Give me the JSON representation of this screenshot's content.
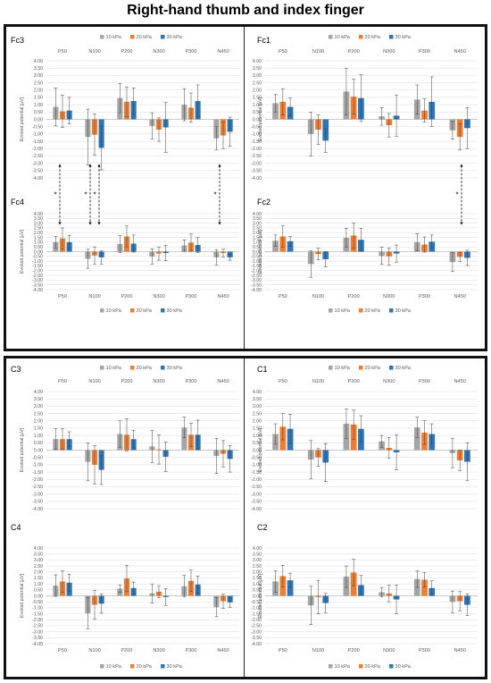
{
  "page": {
    "title": "Right-hand thumb and index finger"
  },
  "colors": {
    "s10": "#A5A5A5",
    "s20": "#ED7D31",
    "s30": "#2E75B6",
    "grid": "#d9d9d9",
    "text": "#595959"
  },
  "chart_data": [
    {
      "type": "bar",
      "label": "Fc3",
      "categories": [
        "P50",
        "N100",
        "P200",
        "N300",
        "P300",
        "N450"
      ],
      "ylabel": "Evoked potential [µV]",
      "ylim": [
        -4,
        4
      ],
      "ytick_step": 0.5,
      "legend": "top",
      "series": [
        {
          "name": "10 kPa",
          "values": [
            0.85,
            -1.2,
            1.45,
            -0.45,
            1.0,
            -1.3
          ],
          "err": [
            1.3,
            1.9,
            1.0,
            0.9,
            1.1,
            0.8
          ]
        },
        {
          "name": "20 kPa",
          "values": [
            0.55,
            -1.05,
            1.2,
            -0.7,
            0.8,
            -1.1
          ],
          "err": [
            1.1,
            1.4,
            1.0,
            0.8,
            1.0,
            0.9
          ]
        },
        {
          "name": "30 kPa",
          "values": [
            0.6,
            -1.95,
            1.25,
            -0.55,
            1.25,
            -0.85
          ],
          "err": [
            0.9,
            1.5,
            0.9,
            1.7,
            1.1,
            1.0
          ]
        }
      ]
    },
    {
      "type": "bar",
      "label": "Fc1",
      "categories": [
        "P50",
        "N100",
        "P200",
        "N300",
        "P300",
        "N450"
      ],
      "ylabel": "Evoked potential [µV]",
      "ylim": [
        -4,
        4
      ],
      "ytick_step": 0.5,
      "legend": "top",
      "series": [
        {
          "name": "10 kPa",
          "values": [
            1.1,
            -1.0,
            1.9,
            0.2,
            1.35,
            -0.75
          ],
          "err": [
            0.6,
            1.5,
            1.6,
            0.6,
            1.0,
            0.6
          ]
        },
        {
          "name": "20 kPa",
          "values": [
            1.2,
            -0.7,
            1.55,
            -0.4,
            0.6,
            -1.2
          ],
          "err": [
            0.9,
            1.0,
            1.2,
            0.8,
            0.8,
            0.9
          ]
        },
        {
          "name": "30 kPa",
          "values": [
            0.85,
            -1.45,
            1.45,
            0.25,
            1.2,
            -0.6
          ],
          "err": [
            0.6,
            0.8,
            1.6,
            1.4,
            1.7,
            1.4
          ]
        }
      ]
    },
    {
      "type": "bar",
      "label": "Fc4",
      "categories": [
        "P50",
        "N100",
        "P200",
        "N300",
        "P300",
        "N450"
      ],
      "ylabel": "Evoked potential [µV]",
      "ylim": [
        -4,
        4
      ],
      "ytick_step": 0.5,
      "legend": "bottom",
      "series": [
        {
          "name": "10 kPa",
          "values": [
            1.0,
            -0.75,
            0.8,
            -0.5,
            0.65,
            -0.6
          ],
          "err": [
            0.6,
            1.0,
            0.9,
            0.8,
            0.6,
            0.8
          ]
        },
        {
          "name": "20 kPa",
          "values": [
            1.4,
            -0.4,
            1.6,
            -0.2,
            0.95,
            -0.15
          ],
          "err": [
            1.1,
            0.9,
            1.1,
            0.7,
            0.9,
            0.4
          ]
        },
        {
          "name": "30 kPa",
          "values": [
            1.0,
            -0.6,
            0.85,
            -0.15,
            0.7,
            -0.6
          ],
          "err": [
            0.7,
            0.7,
            0.9,
            0.8,
            0.8,
            0.3
          ]
        }
      ]
    },
    {
      "type": "bar",
      "label": "Fc2",
      "categories": [
        "P50",
        "N100",
        "P200",
        "N300",
        "P300",
        "N450"
      ],
      "ylabel": "Evoked potential [µV]",
      "ylim": [
        -4,
        4
      ],
      "ytick_step": 0.5,
      "legend": "bottom",
      "series": [
        {
          "name": "10 kPa",
          "values": [
            1.15,
            -1.3,
            1.45,
            -0.45,
            1.0,
            -1.1
          ],
          "err": [
            0.6,
            1.4,
            1.0,
            0.9,
            0.9,
            1.0
          ]
        },
        {
          "name": "20 kPa",
          "values": [
            1.6,
            -0.25,
            1.7,
            -0.5,
            0.75,
            -0.55
          ],
          "err": [
            1.1,
            0.6,
            1.3,
            0.9,
            0.8,
            0.5
          ]
        },
        {
          "name": "30 kPa",
          "values": [
            1.1,
            -0.8,
            1.25,
            -0.2,
            1.05,
            -0.65
          ],
          "err": [
            0.5,
            0.8,
            1.2,
            0.9,
            0.7,
            0.8
          ]
        }
      ]
    },
    {
      "type": "bar",
      "label": "C3",
      "categories": [
        "P50",
        "N100",
        "P200",
        "N300",
        "P300",
        "N450"
      ],
      "ylabel": "Evoked potential [µV]",
      "ylim": [
        -4,
        4
      ],
      "ytick_step": 0.5,
      "legend": "top",
      "series": [
        {
          "name": "10 kPa",
          "values": [
            0.75,
            -0.8,
            1.1,
            0.25,
            1.55,
            -0.4
          ],
          "err": [
            0.7,
            1.3,
            0.9,
            1.1,
            0.7,
            1.2
          ]
        },
        {
          "name": "20 kPa",
          "values": [
            0.75,
            -1.0,
            1.05,
            0.05,
            1.05,
            -0.25
          ],
          "err": [
            0.7,
            1.3,
            1.1,
            1.0,
            0.8,
            0.9
          ]
        },
        {
          "name": "30 kPa",
          "values": [
            0.75,
            -1.35,
            0.75,
            -0.45,
            1.05,
            -0.6
          ],
          "err": [
            0.5,
            1.0,
            0.6,
            1.0,
            1.0,
            0.9
          ]
        }
      ]
    },
    {
      "type": "bar",
      "label": "C1",
      "categories": [
        "P50",
        "N100",
        "P200",
        "N300",
        "P300",
        "N450"
      ],
      "ylabel": "Evoked potential [µV]",
      "ylim": [
        -4,
        4
      ],
      "ytick_step": 0.5,
      "legend": "top",
      "series": [
        {
          "name": "10 kPa",
          "values": [
            1.1,
            -0.65,
            1.8,
            0.6,
            1.55,
            -0.2
          ],
          "err": [
            0.7,
            1.3,
            1.0,
            0.4,
            0.7,
            1.0
          ]
        },
        {
          "name": "20 kPa",
          "values": [
            1.6,
            -0.5,
            1.75,
            0.15,
            1.2,
            -0.7
          ],
          "err": [
            0.9,
            0.6,
            1.0,
            0.7,
            0.8,
            0.7
          ]
        },
        {
          "name": "30 kPa",
          "values": [
            1.45,
            -0.85,
            1.45,
            -0.15,
            1.1,
            -0.8
          ],
          "err": [
            1.0,
            1.3,
            0.9,
            1.2,
            0.7,
            1.3
          ]
        }
      ]
    },
    {
      "type": "bar",
      "label": "C4",
      "categories": [
        "P50",
        "N100",
        "P200",
        "N300",
        "P300",
        "N450"
      ],
      "ylabel": "Evoked potential [µV]",
      "ylim": [
        -4,
        4
      ],
      "ytick_step": 0.5,
      "legend": "bottom",
      "series": [
        {
          "name": "10 kPa",
          "values": [
            0.85,
            -1.45,
            0.6,
            0.2,
            0.8,
            -0.95
          ],
          "err": [
            0.9,
            1.3,
            0.3,
            0.8,
            0.9,
            0.8
          ]
        },
        {
          "name": "20 kPa",
          "values": [
            1.2,
            -0.75,
            1.45,
            0.35,
            1.25,
            -0.45
          ],
          "err": [
            0.9,
            1.2,
            1.1,
            0.5,
            0.9,
            0.6
          ]
        },
        {
          "name": "30 kPa",
          "values": [
            1.1,
            -0.65,
            0.65,
            -0.1,
            0.95,
            -0.55
          ],
          "err": [
            0.7,
            0.8,
            0.5,
            0.7,
            0.7,
            0.4
          ]
        }
      ]
    },
    {
      "type": "bar",
      "label": "C2",
      "categories": [
        "P50",
        "N100",
        "P200",
        "N300",
        "P300",
        "N450"
      ],
      "ylabel": "Evoked potential [µV]",
      "ylim": [
        -4,
        4
      ],
      "ytick_step": 0.5,
      "legend": "bottom",
      "series": [
        {
          "name": "10 kPa",
          "values": [
            1.2,
            -0.8,
            1.6,
            0.3,
            1.4,
            -0.5
          ],
          "err": [
            0.9,
            1.6,
            0.9,
            0.4,
            0.7,
            0.9
          ]
        },
        {
          "name": "20 kPa",
          "values": [
            1.65,
            -0.1,
            1.95,
            0.2,
            1.35,
            -0.45
          ],
          "err": [
            0.9,
            1.4,
            1.1,
            0.7,
            0.6,
            0.8
          ]
        },
        {
          "name": "30 kPa",
          "values": [
            1.3,
            -0.6,
            0.9,
            -0.3,
            0.65,
            -0.75
          ],
          "err": [
            0.6,
            0.8,
            0.8,
            1.2,
            0.6,
            0.9
          ]
        }
      ]
    }
  ],
  "significance": [
    {
      "marker": "*"
    },
    {
      "marker": "*"
    },
    {
      "marker": "*"
    },
    {
      "marker": "*"
    },
    {
      "marker": "*"
    }
  ]
}
